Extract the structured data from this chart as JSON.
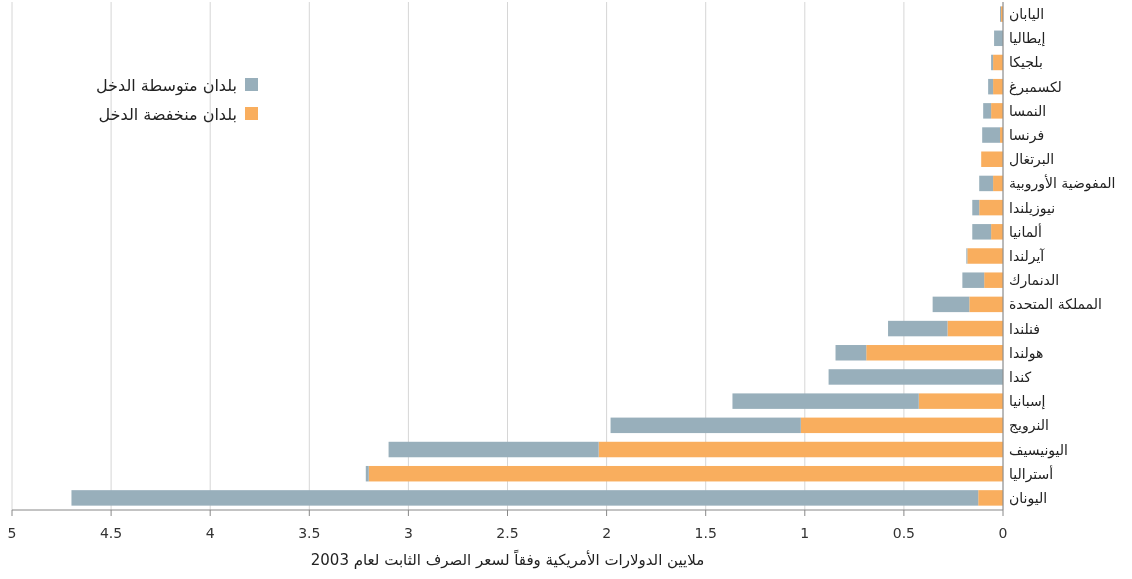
{
  "chart_data": {
    "type": "bar",
    "orientation": "horizontal",
    "stacked": true,
    "xlabel": "ملايين الدولارات الأمريكية وفقاً لسعر الصرف الثابت لعام 2003",
    "categories": [
      "اليابان",
      "إيطاليا",
      "بلجيكا",
      "لكسمبرغ",
      "النمسا",
      "فرنسا",
      "البرتغال",
      "المفوضية الأوروبية",
      "نيوزيلندا",
      "ألمانيا",
      "آيرلندا",
      "الدنمارك",
      "المملكة المتحدة",
      "فنلندا",
      "هولندا",
      "كندا",
      "إسبانيا",
      "النرويج",
      "اليونيسيف",
      "أستراليا",
      "اليونان"
    ],
    "series": [
      {
        "name": "بلدان منخفضة الدخل",
        "color": "#f9ae5e",
        "values": [
          0.01,
          null,
          0.05,
          0.05,
          0.06,
          0.015,
          0.11,
          0.05,
          0.12,
          0.06,
          0.18,
          0.095,
          0.17,
          0.28,
          0.69,
          0,
          0.425,
          1.02,
          2.04,
          3.2,
          0.125
        ]
      },
      {
        "name": "بلدان متوسطة الدخل",
        "color": "#98afbb",
        "values": [
          0.005,
          0.045,
          0.01,
          0.025,
          0.04,
          0.09,
          0,
          0.07,
          0.035,
          0.095,
          0.005,
          0.11,
          0.185,
          0.3,
          0.155,
          0.88,
          0.94,
          0.96,
          1.06,
          0.015,
          4.575
        ]
      }
    ],
    "xlim": [
      5,
      0
    ],
    "xticks": [
      5,
      4.5,
      4,
      3.5,
      3,
      2.5,
      2,
      1.5,
      1,
      0.5,
      0
    ],
    "grid": "x",
    "legend": "top left"
  }
}
